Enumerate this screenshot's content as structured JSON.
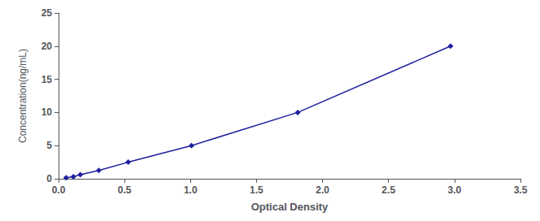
{
  "chart_data": {
    "type": "line",
    "x": [
      0.057,
      0.112,
      0.165,
      0.305,
      0.528,
      1.007,
      1.812,
      2.97
    ],
    "values": [
      0.156,
      0.312,
      0.625,
      1.25,
      2.5,
      5.0,
      10.0,
      20.0
    ],
    "color": "#1f1f9f",
    "marker": "diamond",
    "xlabel": "Optical Density",
    "ylabel": "Concentration(ng/mL)",
    "xlim": [
      0,
      3.5
    ],
    "ylim": [
      0,
      25
    ],
    "xticks": [
      {
        "value": 0,
        "label": "0.0"
      },
      0.5,
      {
        "value": 1.0,
        "label": "1.0"
      },
      1.5,
      {
        "value": 2.0,
        "label": "2.0"
      },
      2.5,
      {
        "value": 3.0,
        "label": "3.0"
      },
      3.5
    ],
    "yticks": [
      0,
      5,
      10,
      15,
      20,
      25
    ],
    "grid": false
  }
}
